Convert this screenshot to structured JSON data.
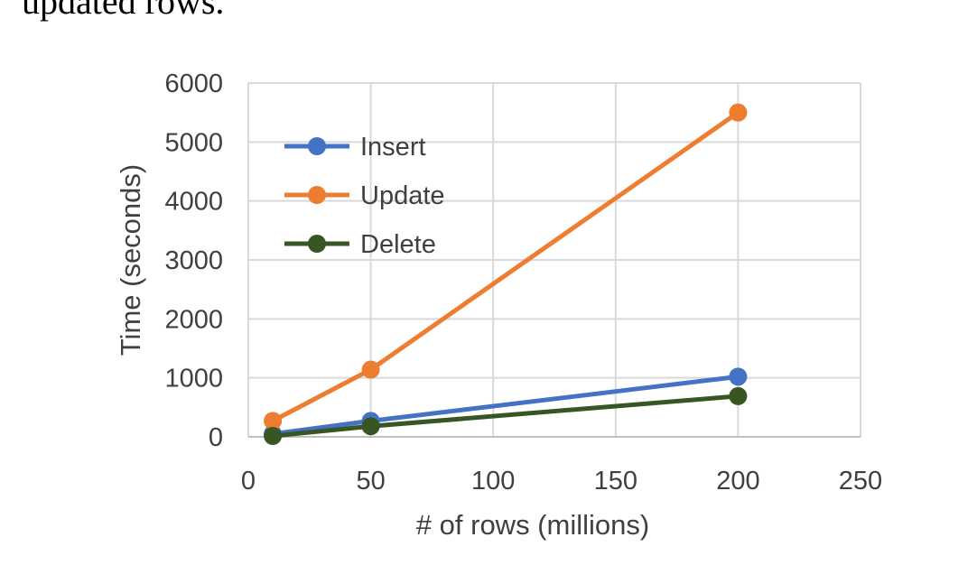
{
  "caption_fragment": "updated rows.",
  "chart_data": {
    "type": "line",
    "title": "",
    "xlabel": "#  of rows (millions)",
    "ylabel": "Time (seconds)",
    "xlim": [
      0,
      250
    ],
    "ylim": [
      0,
      6000
    ],
    "xticks": [
      0,
      50,
      100,
      150,
      200,
      250
    ],
    "yticks": [
      0,
      1000,
      2000,
      3000,
      4000,
      5000,
      6000
    ],
    "grid": true,
    "legend_position": "top-left",
    "x": [
      10,
      50,
      200
    ],
    "series": [
      {
        "name": "Insert",
        "color": "#4472c4",
        "values": [
          50,
          270,
          1020
        ]
      },
      {
        "name": "Update",
        "color": "#ed7d31",
        "values": [
          270,
          1140,
          5500
        ]
      },
      {
        "name": "Delete",
        "color": "#375623",
        "values": [
          15,
          180,
          690
        ]
      }
    ]
  }
}
